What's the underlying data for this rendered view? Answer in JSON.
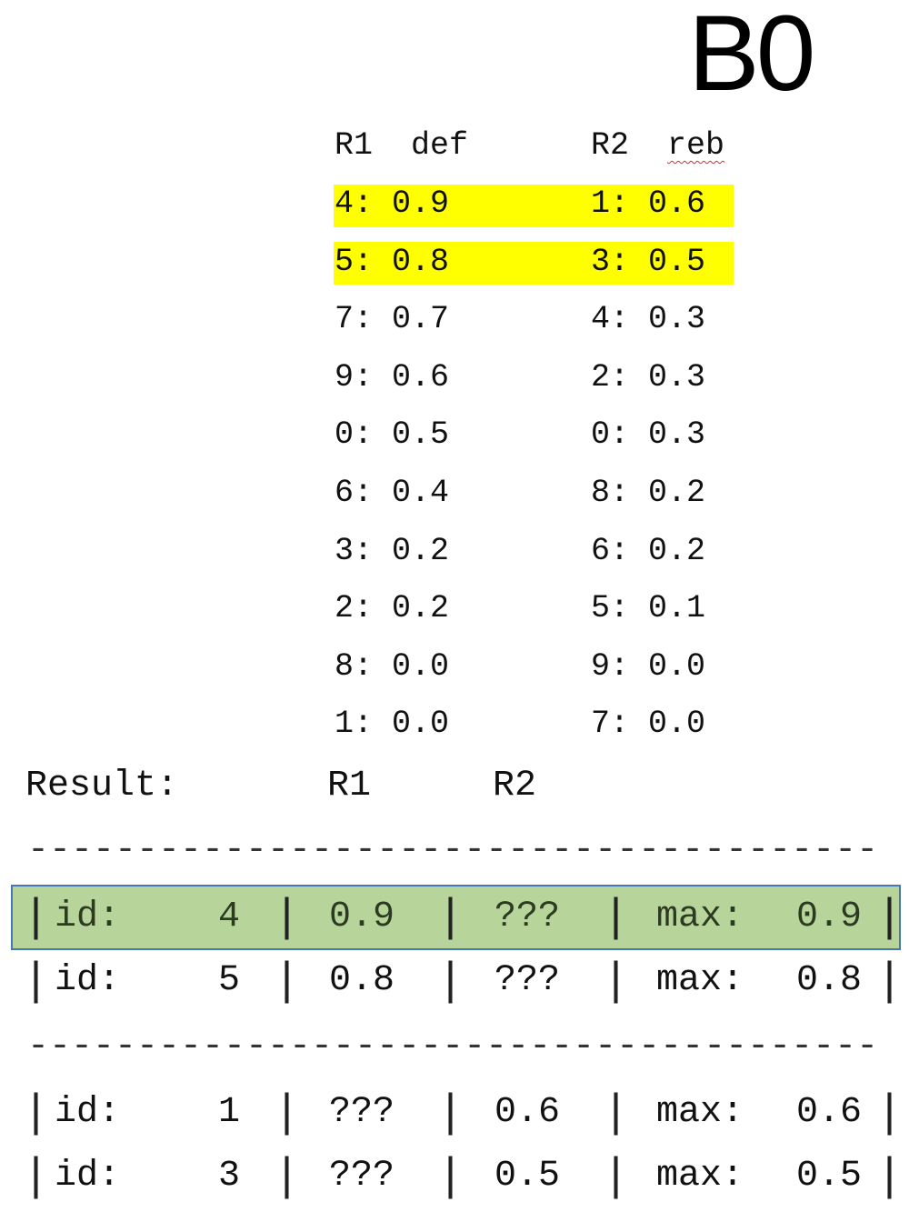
{
  "title": "B0",
  "lists": {
    "r1": {
      "header_name": "R1",
      "header_key": "def",
      "entries": [
        {
          "id": "4",
          "value": "0.9",
          "highlighted": true
        },
        {
          "id": "5",
          "value": "0.8",
          "highlighted": true
        },
        {
          "id": "7",
          "value": "0.7",
          "highlighted": false
        },
        {
          "id": "9",
          "value": "0.6",
          "highlighted": false
        },
        {
          "id": "0",
          "value": "0.5",
          "highlighted": false
        },
        {
          "id": "6",
          "value": "0.4",
          "highlighted": false
        },
        {
          "id": "3",
          "value": "0.2",
          "highlighted": false
        },
        {
          "id": "2",
          "value": "0.2",
          "highlighted": false
        },
        {
          "id": "8",
          "value": "0.0",
          "highlighted": false
        },
        {
          "id": "1",
          "value": "0.0",
          "highlighted": false
        }
      ]
    },
    "r2": {
      "header_name": "R2",
      "header_key": "reb",
      "entries": [
        {
          "id": "1",
          "value": "0.6",
          "highlighted": true
        },
        {
          "id": "3",
          "value": "0.5",
          "highlighted": true
        },
        {
          "id": "4",
          "value": "0.3",
          "highlighted": false
        },
        {
          "id": "2",
          "value": "0.3",
          "highlighted": false
        },
        {
          "id": "0",
          "value": "0.3",
          "highlighted": false
        },
        {
          "id": "8",
          "value": "0.2",
          "highlighted": false
        },
        {
          "id": "6",
          "value": "0.2",
          "highlighted": false
        },
        {
          "id": "5",
          "value": "0.1",
          "highlighted": false
        },
        {
          "id": "9",
          "value": "0.0",
          "highlighted": false
        },
        {
          "id": "7",
          "value": "0.0",
          "highlighted": false
        }
      ]
    }
  },
  "result": {
    "label": "Result:",
    "col_r1": "R1",
    "col_r2": "R2",
    "separator": "---------------------------------------",
    "id_label": "id:",
    "max_label": "max:",
    "groups": [
      [
        {
          "id": "4",
          "r1": "0.9",
          "r2": "???",
          "max": "0.9",
          "selected": true
        },
        {
          "id": "5",
          "r1": "0.8",
          "r2": "???",
          "max": "0.8",
          "selected": false
        }
      ],
      [
        {
          "id": "1",
          "r1": "???",
          "r2": "0.6",
          "max": "0.6",
          "selected": false
        },
        {
          "id": "3",
          "r1": "???",
          "r2": "0.5",
          "max": "0.5",
          "selected": false
        }
      ]
    ]
  },
  "colors": {
    "highlight": "#ffff00",
    "selected_fill": "#b7d49a",
    "selected_border": "#4a74b8"
  }
}
